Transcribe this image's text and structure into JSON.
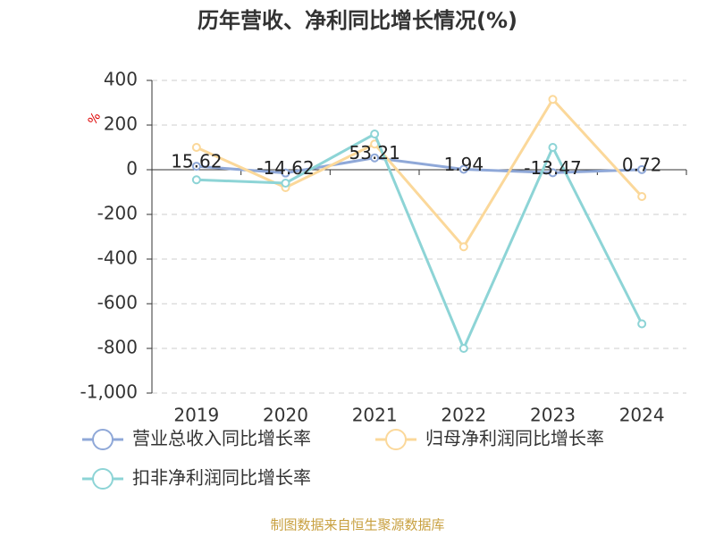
{
  "chart_data": {
    "type": "line",
    "title": "历年营收、净利同比增长情况(%)",
    "y_label": "%",
    "source": "制图数据来自恒生聚源数据库",
    "categories": [
      "2019",
      "2020",
      "2021",
      "2022",
      "2023",
      "2024"
    ],
    "series": [
      {
        "name": "营业总收入同比增长率",
        "color": "#8fa8d8",
        "values": [
          15.62,
          -14.62,
          53.21,
          1.94,
          -13.47,
          0.72
        ],
        "show_labels": true
      },
      {
        "name": "归母净利润同比增长率",
        "color": "#fbd89a",
        "values": [
          100,
          -80,
          115,
          -345,
          315,
          -120
        ]
      },
      {
        "name": "扣非净利润同比增长率",
        "color": "#8dd4d6",
        "values": [
          -45,
          -60,
          160,
          -800,
          100,
          -690
        ]
      }
    ],
    "ylim": [
      -1000,
      400
    ],
    "yticks": [
      {
        "value": -1000,
        "label": "-1,000"
      },
      -800,
      -600,
      -400,
      -200,
      0,
      200,
      400
    ],
    "grid": true
  }
}
